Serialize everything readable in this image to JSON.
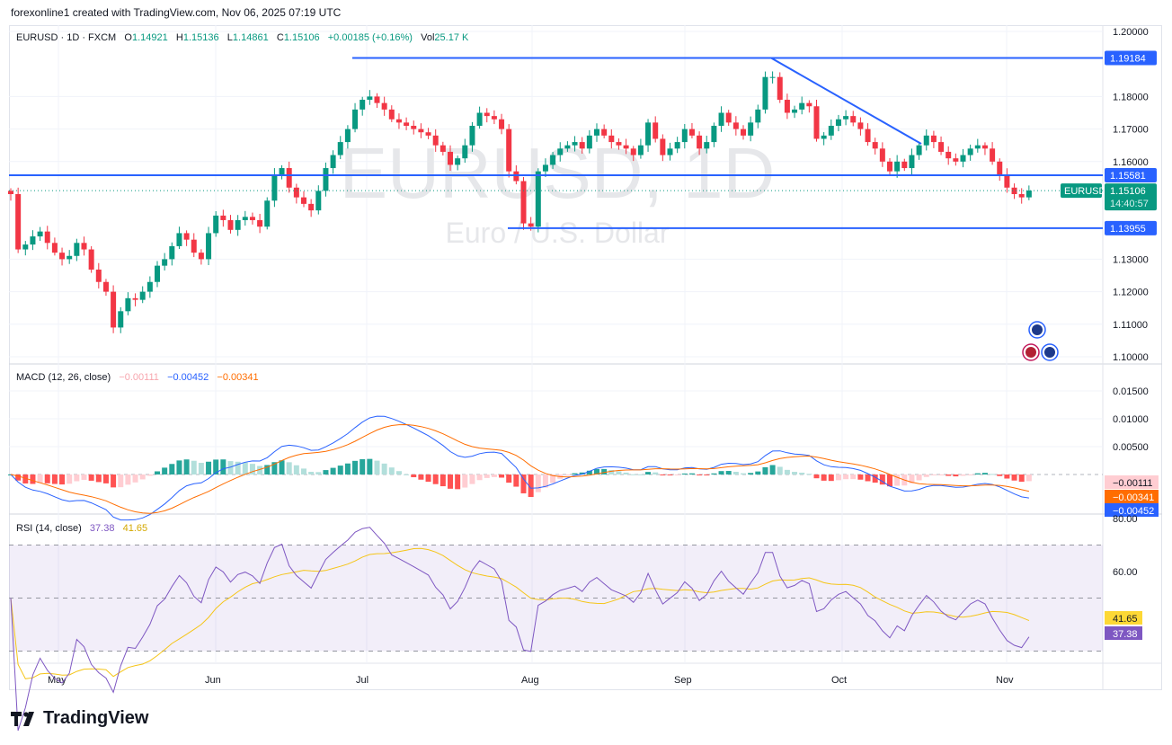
{
  "credit": "forexonline1 created with TradingView.com, Nov 06, 2025 07:19 UTC",
  "header": {
    "symbol": "EURUSD · 1D · FXCM",
    "o_label": "O",
    "o": "1.14921",
    "h_label": "H",
    "h": "1.15136",
    "l_label": "L",
    "l": "1.14861",
    "c_label": "C",
    "c": "1.15106",
    "change": "+0.00185 (+0.16%)",
    "vol_label": "Vol",
    "vol": "25.17 K"
  },
  "watermark": {
    "title": "EURUSD, 1D",
    "subtitle": "Euro / U.S. Dollar"
  },
  "macd_legend": {
    "name": "MACD (12, 26, close)",
    "hist": "−0.00111",
    "macd": "−0.00452",
    "signal": "−0.00341"
  },
  "rsi_legend": {
    "name": "RSI (14, close)",
    "rsi": "37.38",
    "ma": "41.65"
  },
  "logo": "TradingView",
  "colors": {
    "up": "#089981",
    "down": "#f23645",
    "level": "#2962ff",
    "macd": "#2962ff",
    "signal": "#ff6d00",
    "rsi": "#7e57c2",
    "rsi_ma": "#f5c518"
  },
  "chart_data": {
    "type": "candlestick",
    "symbol": "EURUSD",
    "interval": "1D",
    "closes": [
      1.15,
      1.133,
      1.1345,
      1.137,
      1.1385,
      1.135,
      1.132,
      1.13,
      1.131,
      1.135,
      1.133,
      1.1268,
      1.123,
      1.12,
      1.109,
      1.114,
      1.118,
      1.1175,
      1.12,
      1.123,
      1.128,
      1.13,
      1.134,
      1.138,
      1.136,
      1.132,
      1.13,
      1.138,
      1.1434,
      1.142,
      1.139,
      1.142,
      1.143,
      1.142,
      1.14,
      1.148,
      1.156,
      1.158,
      1.152,
      1.149,
      1.147,
      1.145,
      1.151,
      1.158,
      1.162,
      1.166,
      1.17,
      1.176,
      1.179,
      1.18,
      1.178,
      1.176,
      1.173,
      1.172,
      1.171,
      1.17,
      1.169,
      1.168,
      1.165,
      1.163,
      1.159,
      1.161,
      1.165,
      1.171,
      1.175,
      1.174,
      1.173,
      1.17,
      1.157,
      1.154,
      1.141,
      1.14,
      1.157,
      1.159,
      1.162,
      1.164,
      1.165,
      1.166,
      1.164,
      1.168,
      1.17,
      1.168,
      1.166,
      1.165,
      1.164,
      1.162,
      1.165,
      1.172,
      1.167,
      1.162,
      1.164,
      1.166,
      1.17,
      1.168,
      1.164,
      1.166,
      1.171,
      1.175,
      1.172,
      1.17,
      1.168,
      1.172,
      1.176,
      1.186,
      1.186,
      1.179,
      1.175,
      1.176,
      1.178,
      1.177,
      1.167,
      1.168,
      1.171,
      1.173,
      1.174,
      1.172,
      1.17,
      1.166,
      1.164,
      1.16,
      1.157,
      1.16,
      1.158,
      1.162,
      1.165,
      1.168,
      1.166,
      1.163,
      1.161,
      1.16,
      1.162,
      1.164,
      1.165,
      1.164,
      1.16,
      1.156,
      1.152,
      1.15,
      1.149,
      1.1511
    ],
    "price_ticks": [
      "1.20000",
      "1.18000",
      "1.17000",
      "1.16000",
      "1.13000",
      "1.12000",
      "1.11000",
      "1.10000"
    ],
    "ylim": [
      1.1,
      1.2
    ],
    "levels": [
      {
        "label": "1.19184",
        "value": 1.19184
      },
      {
        "label": "1.15581",
        "value": 1.15581
      },
      {
        "label": "1.13955",
        "value": 1.13955
      }
    ],
    "current": {
      "label": "EURUSD",
      "price": "1.15106",
      "countdown": "14:40:57"
    },
    "month_ticks": [
      "May",
      "Jun",
      "Jul",
      "Aug",
      "Sep",
      "Oct",
      "Nov"
    ],
    "macd_ticks": [
      "0.01500",
      "0.01000",
      "0.00500",
      "0.00000"
    ],
    "macd_ylim": [
      -0.0065,
      0.018
    ],
    "rsi_ticks": [
      "80.00",
      "60.00"
    ],
    "rsi_ylim": [
      15,
      82
    ],
    "rsi_bands": [
      70,
      50,
      30
    ]
  }
}
